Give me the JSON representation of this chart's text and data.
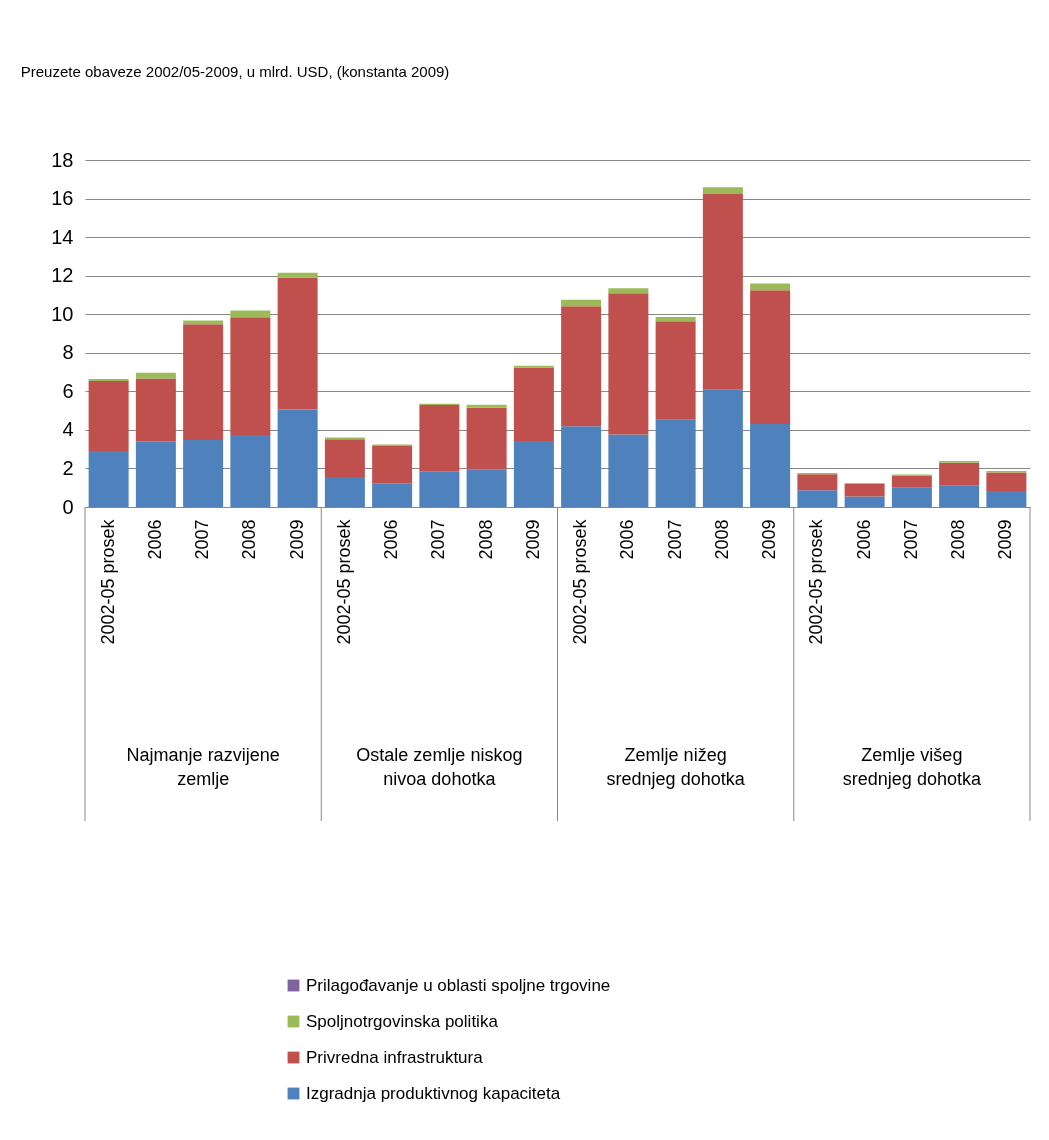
{
  "chart_data": {
    "type": "bar",
    "stacked": true,
    "title": "Preuzete obaveze 2002/05-2009, u mlrd. USD, (konstanta 2009)",
    "categories": [
      "2002-05 prosek",
      "2006",
      "2007",
      "2008",
      "2009",
      "2002-05 prosek",
      "2006",
      "2007",
      "2008",
      "2009",
      "2002-05 prosek",
      "2006",
      "2007",
      "2008",
      "2009",
      "2002-05 prosek",
      "2006",
      "2007",
      "2008",
      "2009"
    ],
    "series": [
      {
        "name": "Izgradnja produktivnog kapaciteta",
        "color": "#4f81bd",
        "values": [
          2.91,
          3.41,
          3.47,
          3.73,
          5.06,
          1.56,
          1.23,
          1.85,
          1.96,
          3.43,
          4.19,
          3.76,
          4.52,
          6.08,
          4.3,
          0.87,
          0.55,
          1.0,
          1.13,
          0.83
        ]
      },
      {
        "name": "Privredna infrastruktura",
        "color": "#c0504d",
        "values": [
          3.62,
          3.26,
          6.01,
          6.11,
          6.85,
          1.96,
          1.94,
          3.44,
          3.19,
          3.8,
          6.23,
          7.33,
          5.12,
          10.16,
          6.95,
          0.83,
          0.65,
          0.63,
          1.17,
          0.96
        ]
      },
      {
        "name": "Spoljnotrgovinska politika",
        "color": "#9bbb59",
        "values": [
          0.11,
          0.3,
          0.19,
          0.35,
          0.24,
          0.08,
          0.07,
          0.07,
          0.15,
          0.1,
          0.33,
          0.26,
          0.22,
          0.35,
          0.34,
          0.07,
          0.05,
          0.05,
          0.09,
          0.08
        ]
      },
      {
        "name": "Prilagođavanje u oblasti spoljne trgovine",
        "color": "#8064a2",
        "values": [
          0,
          0,
          0,
          0,
          0,
          0,
          0,
          0,
          0,
          0,
          0,
          0,
          0,
          0,
          0,
          0,
          0,
          0,
          0,
          0
        ]
      }
    ],
    "annotations": [
      "Najmanje razvijene zemlje",
      "Ostale zemlje niskog nivoa dohotka",
      "Zemlje nižeg srednjeg dohotka",
      "Zemlje višeg srednjeg dohotka"
    ],
    "ylim": [
      0,
      18
    ],
    "yticks": [
      0,
      2,
      4,
      6,
      8,
      10,
      12,
      14,
      16,
      18
    ],
    "grid": "y",
    "legend": "bottom"
  }
}
